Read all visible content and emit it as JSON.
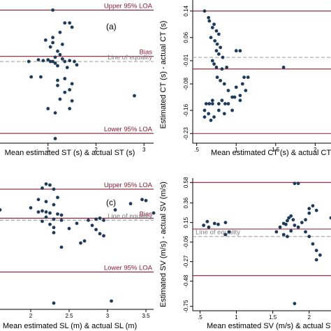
{
  "colors": {
    "point": "#1f3b5a",
    "loa_line": "#8b1a35",
    "equality_line": "#a6a6a6",
    "axis": "#000000",
    "background": "#ffffff"
  },
  "chart_data": [
    {
      "type": "scatter",
      "panel_letter": "(a)",
      "xlabel": "Mean estimated ST (s) & actual ST (s)",
      "ylabel": "",
      "x_ticks": [
        {
          "v": 1,
          "label": "1"
        },
        {
          "v": 2,
          "label": "2"
        },
        {
          "v": 3,
          "label": "3"
        }
      ],
      "y_ticks": [],
      "xlim": [
        0.0,
        3.2
      ],
      "ylim": [
        -0.88,
        0.62
      ],
      "reference_lines": [
        {
          "y": 0.6,
          "label": "Upper 95% LOA",
          "style": "loa"
        },
        {
          "y": 0.06,
          "label": "Bias",
          "style": "loa"
        },
        {
          "y": 0.0,
          "label": "Line of equality",
          "style": "equality"
        },
        {
          "y": -0.84,
          "label": "Lower 95% LOA",
          "style": "loa"
        }
      ],
      "points": [
        [
          0.6,
          0.0
        ],
        [
          1.1,
          0.6
        ],
        [
          1.35,
          0.45
        ],
        [
          1.45,
          0.45
        ],
        [
          1.5,
          0.4
        ],
        [
          1.25,
          0.34
        ],
        [
          1.1,
          0.28
        ],
        [
          0.95,
          0.25
        ],
        [
          1.1,
          0.22
        ],
        [
          1.05,
          0.17
        ],
        [
          1.3,
          0.2
        ],
        [
          1.2,
          0.12
        ],
        [
          1.25,
          0.08
        ],
        [
          1.15,
          0.05
        ],
        [
          1.3,
          0.03
        ],
        [
          0.8,
          0.02
        ],
        [
          0.9,
          0.01
        ],
        [
          1.0,
          0.02
        ],
        [
          1.05,
          0.0
        ],
        [
          1.1,
          0.0
        ],
        [
          1.15,
          -0.02
        ],
        [
          1.2,
          -0.05
        ],
        [
          1.35,
          0.0
        ],
        [
          1.45,
          0.01
        ],
        [
          1.55,
          0.0
        ],
        [
          1.6,
          -0.04
        ],
        [
          1.4,
          -0.07
        ],
        [
          0.65,
          -0.18
        ],
        [
          0.85,
          -0.18
        ],
        [
          1.2,
          -0.22
        ],
        [
          1.35,
          -0.2
        ],
        [
          1.5,
          -0.26
        ],
        [
          1.45,
          -0.33
        ],
        [
          1.35,
          -0.36
        ],
        [
          1.2,
          -0.28
        ],
        [
          1.25,
          -0.44
        ],
        [
          1.5,
          -0.46
        ],
        [
          1.45,
          -0.55
        ],
        [
          1.15,
          -0.6
        ],
        [
          1.0,
          -0.55
        ],
        [
          2.8,
          -0.4
        ],
        [
          1.15,
          -0.9
        ]
      ]
    },
    {
      "type": "scatter",
      "xlabel": "Mean estimated CT (s) & actual CT (s)",
      "ylabel": "Estimated CT (s) - actual CT (s)",
      "x_ticks": [
        {
          "v": 0.5,
          "label": ".5"
        },
        {
          "v": 1,
          "label": "1"
        },
        {
          "v": 1.5,
          "label": "1.5"
        },
        {
          "v": 2,
          "label": "2"
        }
      ],
      "y_ticks": [
        {
          "v": 0.14,
          "label": "0.14"
        },
        {
          "v": 0.06,
          "label": "0.06"
        },
        {
          "v": -0.01,
          "label": "-0.01"
        },
        {
          "v": -0.08,
          "label": "-0.08"
        },
        {
          "v": -0.16,
          "label": "-0.16"
        },
        {
          "v": -0.23,
          "label": "-0.23"
        }
      ],
      "xlim": [
        0.45,
        2.2
      ],
      "ylim": [
        -0.24,
        0.148
      ],
      "reference_lines": [
        {
          "y": 0.14,
          "label": "",
          "style": "loa"
        },
        {
          "y": 0.0,
          "label": "",
          "style": "equality"
        },
        {
          "y": -0.035,
          "label": "",
          "style": "loa"
        },
        {
          "y": -0.23,
          "label": "",
          "style": "loa"
        }
      ],
      "points": [
        [
          0.6,
          0.14
        ],
        [
          0.65,
          0.12
        ],
        [
          0.66,
          0.11
        ],
        [
          0.7,
          0.09
        ],
        [
          0.72,
          0.1
        ],
        [
          0.75,
          0.08
        ],
        [
          0.78,
          0.07
        ],
        [
          0.68,
          0.06
        ],
        [
          0.73,
          0.05
        ],
        [
          0.76,
          0.04
        ],
        [
          0.8,
          0.03
        ],
        [
          0.75,
          0.02
        ],
        [
          0.78,
          0.01
        ],
        [
          0.83,
          0.0
        ],
        [
          0.7,
          -0.01
        ],
        [
          0.72,
          -0.02
        ],
        [
          0.75,
          -0.03
        ],
        [
          0.82,
          -0.035
        ],
        [
          0.88,
          -0.03
        ],
        [
          0.76,
          -0.06
        ],
        [
          0.8,
          -0.07
        ],
        [
          0.85,
          -0.08
        ],
        [
          1.0,
          -0.09
        ],
        [
          1.08,
          -0.08
        ],
        [
          1.0,
          0.02
        ],
        [
          1.05,
          0.02
        ],
        [
          0.95,
          -0.12
        ],
        [
          1.05,
          -0.13
        ],
        [
          0.62,
          -0.14
        ],
        [
          0.66,
          -0.14
        ],
        [
          0.7,
          -0.14
        ],
        [
          0.78,
          -0.14
        ],
        [
          0.82,
          -0.13
        ],
        [
          0.86,
          -0.14
        ],
        [
          0.9,
          -0.14
        ],
        [
          0.98,
          -0.12
        ],
        [
          0.6,
          -0.16
        ],
        [
          0.65,
          -0.17
        ],
        [
          0.72,
          -0.18
        ],
        [
          0.78,
          -0.16
        ],
        [
          0.85,
          -0.17
        ],
        [
          0.68,
          -0.19
        ],
        [
          0.6,
          -0.18
        ],
        [
          0.7,
          -0.13
        ],
        [
          0.9,
          -0.1
        ],
        [
          1.05,
          -0.115
        ],
        [
          1.12,
          -0.1
        ],
        [
          1.1,
          -0.06
        ],
        [
          1.15,
          -0.06
        ],
        [
          1.6,
          -0.03
        ],
        [
          0.95,
          -0.16
        ]
      ]
    },
    {
      "type": "scatter",
      "panel_letter": "(c)",
      "xlabel": "Mean estimated SL (m) & actual SL (m)",
      "ylabel": "",
      "x_ticks": [
        {
          "v": 2,
          "label": "2"
        },
        {
          "v": 2.5,
          "label": "2.5"
        },
        {
          "v": 3,
          "label": "3"
        },
        {
          "v": 3.5,
          "label": "3.5"
        }
      ],
      "y_ticks": [],
      "xlim": [
        1.6,
        3.6
      ],
      "ylim": [
        -0.84,
        0.36
      ],
      "reference_lines": [
        {
          "y": 0.3,
          "label": "Upper 95% LOA",
          "style": "loa"
        },
        {
          "y": 0.02,
          "label": "Bias",
          "style": "loa"
        },
        {
          "y": 0.0,
          "label": "Line of equality",
          "style": "equality"
        },
        {
          "y": -0.5,
          "label": "Lower 95% LOA",
          "style": "loa"
        }
      ],
      "points": [
        [
          2.2,
          0.35
        ],
        [
          2.25,
          0.34
        ],
        [
          2.15,
          0.31
        ],
        [
          2.3,
          0.3
        ],
        [
          2.35,
          0.22
        ],
        [
          2.1,
          0.2
        ],
        [
          2.2,
          0.18
        ],
        [
          2.3,
          0.15
        ],
        [
          2.0,
          0.12
        ],
        [
          2.1,
          0.08
        ],
        [
          2.15,
          0.09
        ],
        [
          2.2,
          0.08
        ],
        [
          2.25,
          0.07
        ],
        [
          2.35,
          0.06
        ],
        [
          2.4,
          0.05
        ],
        [
          2.2,
          0.03
        ],
        [
          2.3,
          0.01
        ],
        [
          2.4,
          0.0
        ],
        [
          2.15,
          -0.01
        ],
        [
          2.25,
          -0.04
        ],
        [
          2.3,
          -0.07
        ],
        [
          2.5,
          -0.08
        ],
        [
          2.3,
          -0.12
        ],
        [
          2.6,
          -0.03
        ],
        [
          2.75,
          0.0
        ],
        [
          2.85,
          0.01
        ],
        [
          2.9,
          0.02
        ],
        [
          2.95,
          0.0
        ],
        [
          2.8,
          -0.05
        ],
        [
          2.85,
          -0.09
        ],
        [
          2.9,
          -0.13
        ],
        [
          2.95,
          -0.15
        ],
        [
          2.7,
          -0.2
        ],
        [
          2.65,
          -0.22
        ],
        [
          2.4,
          -0.26
        ],
        [
          3.3,
          0.16
        ],
        [
          3.45,
          0.2
        ],
        [
          3.5,
          0.19
        ],
        [
          3.1,
          0.1
        ],
        [
          3.6,
          0.07
        ],
        [
          2.3,
          -0.8
        ],
        [
          3.05,
          -0.78
        ],
        [
          1.6,
          0.1
        ]
      ]
    },
    {
      "type": "scatter",
      "xlabel": "Mean estimated SV (m/s) & actual SV (m/s)",
      "ylabel": "Estimated SV (m/s) - actual SV (m/s)",
      "x_ticks": [
        {
          "v": 0.5,
          "label": ".5"
        },
        {
          "v": 1,
          "label": "1"
        },
        {
          "v": 1.5,
          "label": "1.5"
        },
        {
          "v": 2,
          "label": "2"
        }
      ],
      "y_ticks": [
        {
          "v": 0.58,
          "label": "0.58"
        },
        {
          "v": 0.36,
          "label": "0.36"
        },
        {
          "v": 0.15,
          "label": "0.15"
        },
        {
          "v": -0.06,
          "label": "-0.06"
        },
        {
          "v": -0.27,
          "label": "-0.27"
        },
        {
          "v": -0.48,
          "label": "-0.48"
        },
        {
          "v": -0.75,
          "label": "-0.75"
        }
      ],
      "xlim": [
        0.4,
        2.3
      ],
      "ylim": [
        -0.76,
        0.59
      ],
      "reference_lines": [
        {
          "y": 0.58,
          "label": "",
          "style": "loa"
        },
        {
          "y": 0.08,
          "label": "",
          "style": "loa"
        },
        {
          "y": 0.0,
          "label": "Line of equality",
          "style": "equality"
        },
        {
          "y": -0.42,
          "label": "",
          "style": "loa"
        }
      ],
      "points": [
        [
          0.55,
          0.12
        ],
        [
          0.6,
          0.16
        ],
        [
          0.62,
          0.1
        ],
        [
          0.7,
          0.14
        ],
        [
          0.75,
          0.13
        ],
        [
          0.85,
          0.15
        ],
        [
          0.9,
          0.05
        ],
        [
          0.85,
          0.02
        ],
        [
          1.55,
          0.05
        ],
        [
          1.6,
          0.1
        ],
        [
          1.65,
          0.14
        ],
        [
          1.7,
          0.17
        ],
        [
          1.72,
          0.2
        ],
        [
          1.75,
          0.22
        ],
        [
          1.78,
          0.18
        ],
        [
          1.8,
          0.12
        ],
        [
          1.85,
          0.1
        ],
        [
          1.9,
          0.15
        ],
        [
          1.95,
          0.18
        ],
        [
          2.0,
          0.25
        ],
        [
          2.0,
          0.3
        ],
        [
          2.05,
          0.33
        ],
        [
          2.1,
          0.28
        ],
        [
          1.95,
          0.05
        ],
        [
          2.0,
          0.0
        ],
        [
          2.05,
          -0.08
        ],
        [
          2.1,
          -0.15
        ],
        [
          2.15,
          -0.2
        ],
        [
          2.1,
          -0.25
        ],
        [
          1.65,
          0.02
        ],
        [
          1.7,
          0.0
        ],
        [
          1.75,
          0.06
        ],
        [
          1.8,
          0.57
        ],
        [
          1.85,
          0.57
        ],
        [
          2.3,
          0.2
        ],
        [
          1.8,
          -0.72
        ],
        [
          1.68,
          0.13
        ]
      ]
    }
  ]
}
